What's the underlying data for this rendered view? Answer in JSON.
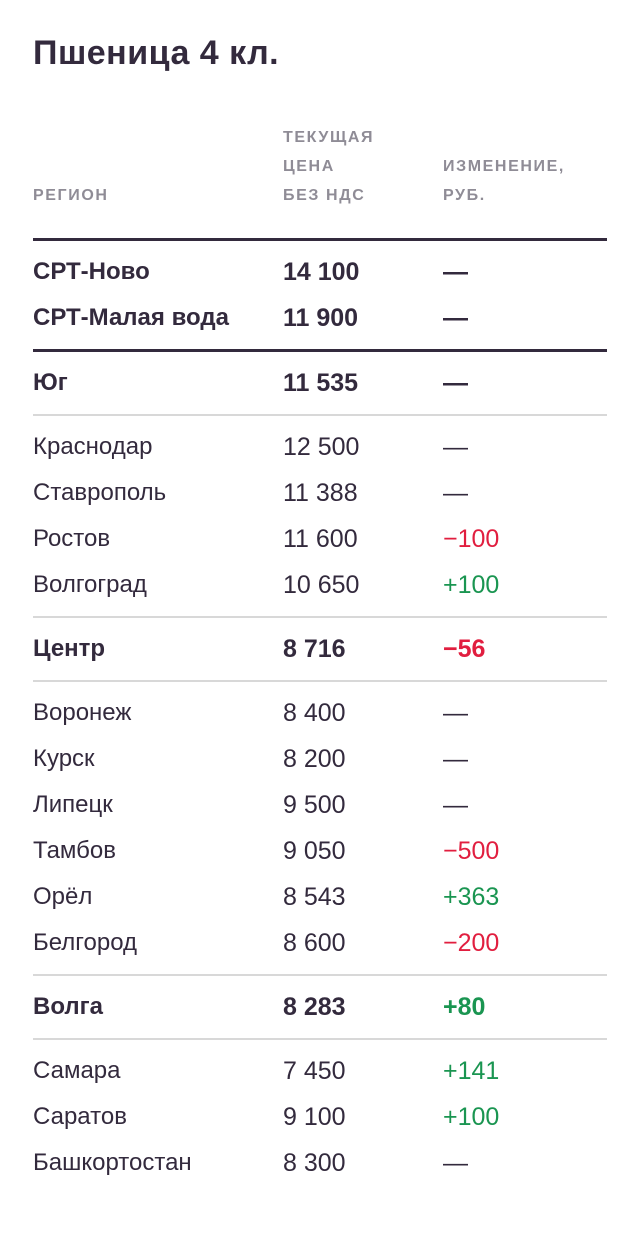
{
  "page_title": "Пшеница 4 кл.",
  "table_header": {
    "region_lines": [
      "РЕГИОН"
    ],
    "price_lines": [
      "ТЕКУЩАЯ",
      "ЦЕНА",
      "БЕЗ НДС"
    ],
    "change_lines": [
      "ИЗМЕНЕНИЕ,",
      "РУБ."
    ]
  },
  "chart_data": {
    "type": "table",
    "title": "Пшеница 4 кл.",
    "columns": [
      "РЕГИОН",
      "ТЕКУЩАЯ ЦЕНА БЕЗ НДС",
      "ИЗМЕНЕНИЕ, РУБ."
    ],
    "rows": [
      {
        "region": "СРТ-Ново",
        "price": "14 100",
        "change": "—",
        "trend": "none",
        "emphasis": true,
        "divider": "dark"
      },
      {
        "region": "СРТ-Малая вода",
        "price": "11 900",
        "change": "—",
        "trend": "none",
        "emphasis": true,
        "divider": "none"
      },
      {
        "region": "Юг",
        "price": "11 535",
        "change": "—",
        "trend": "none",
        "emphasis": true,
        "divider": "dark"
      },
      {
        "region": "Краснодар",
        "price": "12 500",
        "change": "—",
        "trend": "none",
        "emphasis": false,
        "divider": "light"
      },
      {
        "region": "Ставрополь",
        "price": "11 388",
        "change": "—",
        "trend": "none",
        "emphasis": false,
        "divider": "none"
      },
      {
        "region": "Ростов",
        "price": "11 600",
        "change": "−100",
        "trend": "down",
        "emphasis": false,
        "divider": "none"
      },
      {
        "region": "Волгоград",
        "price": "10 650",
        "change": "+100",
        "trend": "up",
        "emphasis": false,
        "divider": "none"
      },
      {
        "region": "Центр",
        "price": "8 716",
        "change": "−56",
        "trend": "down",
        "emphasis": true,
        "divider": "light"
      },
      {
        "region": "Воронеж",
        "price": "8 400",
        "change": "—",
        "trend": "none",
        "emphasis": false,
        "divider": "light"
      },
      {
        "region": "Курск",
        "price": "8 200",
        "change": "—",
        "trend": "none",
        "emphasis": false,
        "divider": "none"
      },
      {
        "region": "Липецк",
        "price": "9 500",
        "change": "—",
        "trend": "none",
        "emphasis": false,
        "divider": "none"
      },
      {
        "region": "Тамбов",
        "price": "9 050",
        "change": "−500",
        "trend": "down",
        "emphasis": false,
        "divider": "none"
      },
      {
        "region": "Орёл",
        "price": "8 543",
        "change": "+363",
        "trend": "up",
        "emphasis": false,
        "divider": "none"
      },
      {
        "region": "Белгород",
        "price": "8 600",
        "change": "−200",
        "trend": "down",
        "emphasis": false,
        "divider": "none"
      },
      {
        "region": "Волга",
        "price": "8 283",
        "change": "+80",
        "trend": "up",
        "emphasis": true,
        "divider": "light"
      },
      {
        "region": "Самара",
        "price": "7 450",
        "change": "+141",
        "trend": "up",
        "emphasis": false,
        "divider": "light"
      },
      {
        "region": "Саратов",
        "price": "9 100",
        "change": "+100",
        "trend": "up",
        "emphasis": false,
        "divider": "none"
      },
      {
        "region": "Башкортостан",
        "price": "8 300",
        "change": "—",
        "trend": "none",
        "emphasis": false,
        "divider": "none"
      }
    ]
  },
  "colors": {
    "text": "#332A3D",
    "muted": "#8F8C96",
    "up": "#1A9551",
    "down": "#E11E3F",
    "divider_dark": "#332A3D",
    "divider_light": "#D8D8D8"
  }
}
